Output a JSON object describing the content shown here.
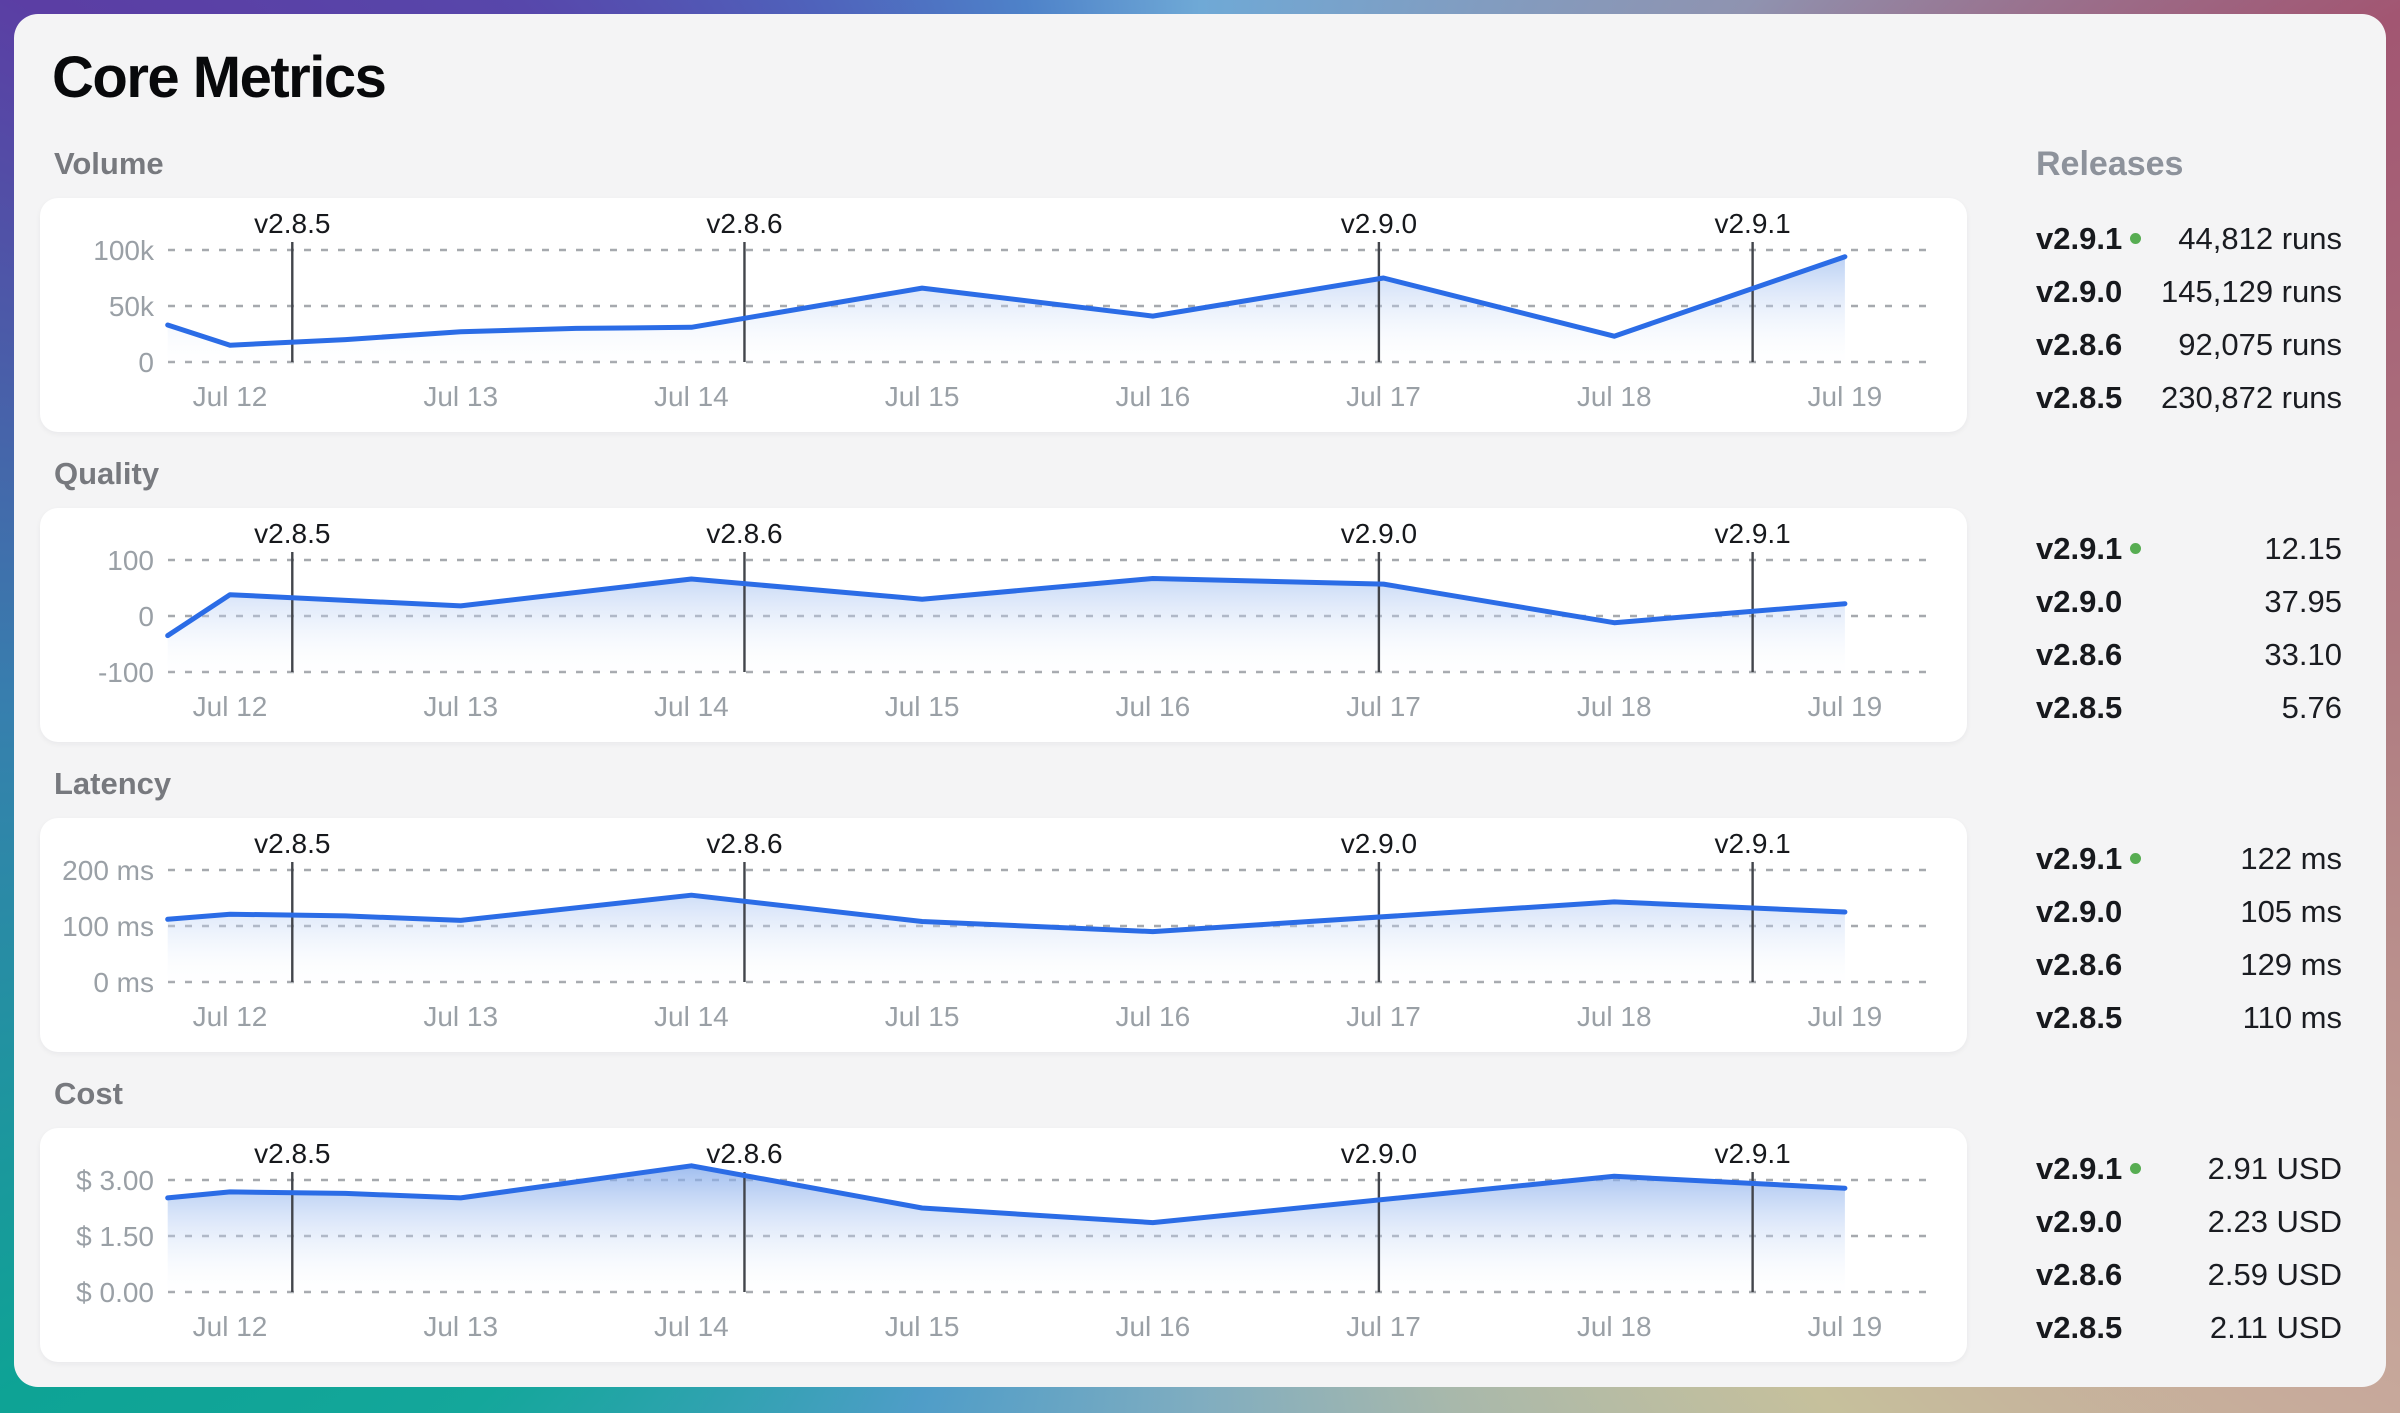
{
  "title": "Core Metrics",
  "releases_panel": {
    "header": "Releases"
  },
  "colors": {
    "line": "#2b6ce6",
    "fill_top": "#7fa7ea",
    "grid": "#a6a9ae",
    "axis_text": "#9aa0a6",
    "marker_line": "#42454b",
    "marker_text": "#16181c",
    "panel_bg": "#f4f4f5",
    "card_bg": "#ffffff",
    "section_label": "#77797e",
    "release_dot_green": "#57ad52",
    "frame_gradient": [
      "#5b3ea4",
      "#4e82c9",
      "#6fa9d6",
      "#a25672",
      "#c7a89b",
      "#c6c09c",
      "#14a79b"
    ]
  },
  "x_axis": {
    "tick_labels": [
      "Jul 12",
      "Jul 13",
      "Jul 14",
      "Jul 15",
      "Jul 16",
      "Jul 17",
      "Jul 18",
      "Jul 19"
    ],
    "domain_days": [
      -0.27,
      7
    ]
  },
  "release_markers": [
    {
      "label": "v2.8.5",
      "day": 0.27
    },
    {
      "label": "v2.8.6",
      "day": 2.23
    },
    {
      "label": "v2.9.0",
      "day": 4.98
    },
    {
      "label": "v2.9.1",
      "day": 6.6
    }
  ],
  "chart_data": [
    {
      "type": "area",
      "title": "Volume",
      "unit": "runs",
      "x_tick_labels": [
        "Jul 12",
        "Jul 13",
        "Jul 14",
        "Jul 15",
        "Jul 16",
        "Jul 17",
        "Jul 18",
        "Jul 19"
      ],
      "y_gridline_values": [
        0,
        50000,
        100000
      ],
      "y_tick_labels_top_to_bottom": [
        "100k",
        "50k",
        "0"
      ],
      "points_day_value": [
        [
          -0.27,
          33000
        ],
        [
          0,
          15000
        ],
        [
          0.5,
          20000
        ],
        [
          1,
          27000
        ],
        [
          1.5,
          30000
        ],
        [
          2,
          31000
        ],
        [
          3,
          66000
        ],
        [
          4,
          41000
        ],
        [
          5,
          75000
        ],
        [
          6,
          23000
        ],
        [
          7,
          94000
        ]
      ]
    },
    {
      "type": "area",
      "title": "Quality",
      "unit": "",
      "x_tick_labels": [
        "Jul 12",
        "Jul 13",
        "Jul 14",
        "Jul 15",
        "Jul 16",
        "Jul 17",
        "Jul 18",
        "Jul 19"
      ],
      "y_gridline_values": [
        -100,
        0,
        100
      ],
      "y_tick_labels_top_to_bottom": [
        "100",
        "0",
        "-100"
      ],
      "points_day_value": [
        [
          -0.27,
          -35
        ],
        [
          0,
          38
        ],
        [
          1,
          18
        ],
        [
          2,
          66
        ],
        [
          3,
          30
        ],
        [
          4,
          67
        ],
        [
          5,
          57
        ],
        [
          6,
          -12
        ],
        [
          7,
          22
        ]
      ]
    },
    {
      "type": "area",
      "title": "Latency",
      "unit": "ms",
      "x_tick_labels": [
        "Jul 12",
        "Jul 13",
        "Jul 14",
        "Jul 15",
        "Jul 16",
        "Jul 17",
        "Jul 18",
        "Jul 19"
      ],
      "y_gridline_values": [
        0,
        100,
        200
      ],
      "y_tick_labels_top_to_bottom": [
        "200 ms",
        "100 ms",
        "0 ms"
      ],
      "points_day_value": [
        [
          -0.27,
          112
        ],
        [
          0,
          121
        ],
        [
          0.5,
          118
        ],
        [
          1,
          110
        ],
        [
          2,
          155
        ],
        [
          3,
          108
        ],
        [
          4,
          90
        ],
        [
          6,
          143
        ],
        [
          7,
          125
        ]
      ]
    },
    {
      "type": "area",
      "title": "Cost",
      "unit": "USD",
      "x_tick_labels": [
        "Jul 12",
        "Jul 13",
        "Jul 14",
        "Jul 15",
        "Jul 16",
        "Jul 17",
        "Jul 18",
        "Jul 19"
      ],
      "y_gridline_values": [
        0,
        1.5,
        3.0
      ],
      "y_tick_labels_top_to_bottom": [
        "$ 3.00",
        "$ 1.50",
        "$ 0.00"
      ],
      "points_day_value": [
        [
          -0.27,
          2.52
        ],
        [
          0,
          2.68
        ],
        [
          0.5,
          2.64
        ],
        [
          1,
          2.52
        ],
        [
          2,
          3.38
        ],
        [
          3,
          2.25
        ],
        [
          4,
          1.86
        ],
        [
          6,
          3.1
        ],
        [
          7,
          2.78
        ]
      ]
    }
  ],
  "sections": [
    {
      "label": "Volume",
      "releases": [
        {
          "version": "v2.9.1",
          "current": true,
          "value": "44,812 runs"
        },
        {
          "version": "v2.9.0",
          "current": false,
          "value": "145,129 runs"
        },
        {
          "version": "v2.8.6",
          "current": false,
          "value": "92,075 runs"
        },
        {
          "version": "v2.8.5",
          "current": false,
          "value": "230,872 runs"
        }
      ]
    },
    {
      "label": "Quality",
      "releases": [
        {
          "version": "v2.9.1",
          "current": true,
          "value": "12.15"
        },
        {
          "version": "v2.9.0",
          "current": false,
          "value": "37.95"
        },
        {
          "version": "v2.8.6",
          "current": false,
          "value": "33.10"
        },
        {
          "version": "v2.8.5",
          "current": false,
          "value": "5.76"
        }
      ]
    },
    {
      "label": "Latency",
      "releases": [
        {
          "version": "v2.9.1",
          "current": true,
          "value": "122 ms"
        },
        {
          "version": "v2.9.0",
          "current": false,
          "value": "105 ms"
        },
        {
          "version": "v2.8.6",
          "current": false,
          "value": "129 ms"
        },
        {
          "version": "v2.8.5",
          "current": false,
          "value": "110 ms"
        }
      ]
    },
    {
      "label": "Cost",
      "releases": [
        {
          "version": "v2.9.1",
          "current": true,
          "value": "2.91 USD"
        },
        {
          "version": "v2.9.0",
          "current": false,
          "value": "2.23 USD"
        },
        {
          "version": "v2.8.6",
          "current": false,
          "value": "2.59 USD"
        },
        {
          "version": "v2.8.5",
          "current": false,
          "value": "2.11 USD"
        }
      ]
    }
  ]
}
